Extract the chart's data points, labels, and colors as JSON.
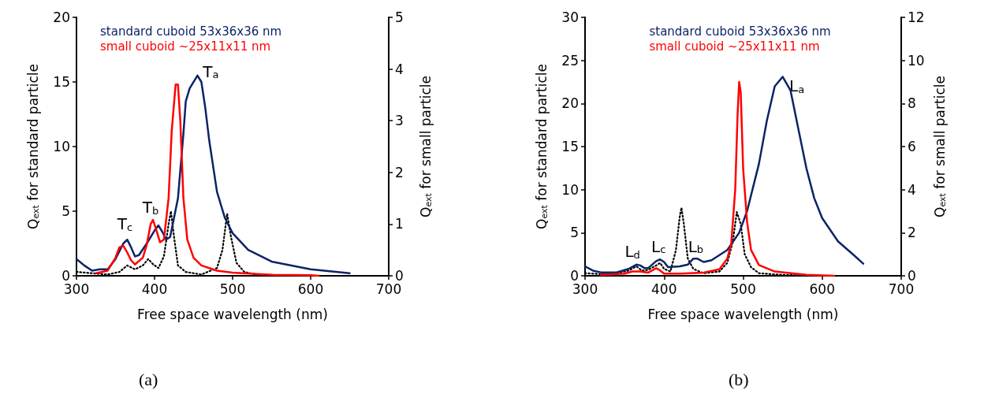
{
  "chart_data": [
    {
      "type": "line",
      "xlabel": "Free space wavelength (nm)",
      "ylabel": "Q$_{ext}$ for standard particle",
      "y2label": "Q$_{ext}$ for small particle",
      "xlim": [
        300,
        700
      ],
      "xticks": [
        300,
        400,
        500,
        600,
        700
      ],
      "ylim": [
        0,
        20
      ],
      "yticks": [
        0,
        5,
        10,
        15,
        20
      ],
      "y2lim": [
        0,
        5
      ],
      "y2ticks": [
        0,
        1,
        2,
        3,
        4,
        5
      ],
      "grid": false,
      "legend": "top left",
      "marker": "none",
      "series": [
        {
          "name": "standard cuboid 53x36x36 nm",
          "color": "#0c2466",
          "line_style": "solid",
          "x": [
            300,
            310,
            320,
            330,
            340,
            350,
            360,
            365,
            370,
            375,
            380,
            390,
            400,
            405,
            410,
            415,
            420,
            430,
            437,
            440,
            445,
            455,
            460,
            465,
            470,
            480,
            490,
            500,
            520,
            550,
            600,
            650
          ],
          "values": [
            1.3,
            0.8,
            0.4,
            0.5,
            0.5,
            1.3,
            2.5,
            2.8,
            2.2,
            1.5,
            1.6,
            2.5,
            3.5,
            3.9,
            3.4,
            2.8,
            3.0,
            6,
            11,
            13.5,
            14.5,
            15.5,
            15,
            13,
            10.5,
            6.5,
            4.5,
            3.3,
            2,
            1.1,
            0.5,
            0.2
          ]
        },
        {
          "name": "small cuboid ~25x11x11 nm",
          "color": "#ff0000",
          "axis": "y2",
          "line_style": "solid",
          "x": [
            325,
            340,
            350,
            355,
            360,
            365,
            370,
            375,
            385,
            390,
            395,
            398,
            402,
            407,
            412,
            418,
            422,
            427,
            430,
            433,
            437,
            442,
            450,
            460,
            480,
            500,
            550,
            600,
            610
          ],
          "values": [
            0.05,
            0.1,
            0.35,
            0.55,
            0.58,
            0.45,
            0.3,
            0.22,
            0.35,
            0.6,
            1.0,
            1.08,
            0.9,
            0.65,
            0.7,
            1.5,
            2.8,
            3.7,
            3.7,
            3.0,
            1.5,
            0.7,
            0.35,
            0.2,
            0.1,
            0.06,
            0.02,
            0.01,
            0
          ]
        },
        {
          "color": "#000000",
          "line_style": "dotted",
          "x": [
            300,
            320,
            340,
            355,
            365,
            375,
            385,
            392,
            398,
            405,
            412,
            418,
            421,
            425,
            430,
            440,
            460,
            480,
            487,
            493,
            498,
            505,
            515,
            530,
            560,
            600
          ],
          "values": [
            0.3,
            0.2,
            0.1,
            0.3,
            0.8,
            0.5,
            0.8,
            1.3,
            0.9,
            0.6,
            1.5,
            4,
            5,
            3,
            0.8,
            0.3,
            0.1,
            0.6,
            2,
            4.8,
            3,
            1,
            0.3,
            0.1,
            0.05,
            0
          ]
        }
      ],
      "annotations": [
        "T$_{c}$",
        "T$_{b}$",
        "T$_{a}$",
        "(a)"
      ]
    },
    {
      "type": "line",
      "xlabel": "Free space wavelength (nm)",
      "ylabel": "Q$_{ext}$ for standard particle",
      "y2label": "Q$_{ext}$ for small particle",
      "xlim": [
        300,
        700
      ],
      "xticks": [
        300,
        400,
        500,
        600,
        700
      ],
      "ylim": [
        0,
        30
      ],
      "yticks": [
        0,
        5,
        10,
        15,
        20,
        25,
        30
      ],
      "y2lim": [
        0,
        12
      ],
      "y2ticks": [
        0,
        2,
        4,
        6,
        8,
        10,
        12
      ],
      "grid": false,
      "legend": "top",
      "marker": "none",
      "series": [
        {
          "name": "standard cuboid 53x36x36 nm",
          "color": "#0c2466",
          "line_style": "solid",
          "x": [
            300,
            310,
            320,
            340,
            355,
            365,
            370,
            375,
            380,
            390,
            395,
            400,
            405,
            420,
            430,
            437,
            442,
            450,
            460,
            480,
            495,
            505,
            520,
            530,
            540,
            550,
            560,
            570,
            580,
            590,
            600,
            620,
            640,
            652
          ],
          "values": [
            1.1,
            0.6,
            0.4,
            0.4,
            0.8,
            1.3,
            1.2,
            0.9,
            0.9,
            1.7,
            1.9,
            1.6,
            1.0,
            1.1,
            1.3,
            2.0,
            2.0,
            1.6,
            1.8,
            3,
            5,
            7.5,
            13,
            18,
            22,
            23.1,
            21.5,
            17,
            12.5,
            9,
            6.7,
            4,
            2.4,
            1.4
          ]
        },
        {
          "name": "small cuboid ~25x11x11 nm",
          "color": "#ff0000",
          "axis": "y2",
          "line_style": "solid",
          "x": [
            320,
            350,
            360,
            370,
            380,
            390,
            395,
            400,
            420,
            450,
            470,
            480,
            485,
            490,
            493,
            495,
            497,
            500,
            505,
            510,
            520,
            540,
            580,
            615
          ],
          "values": [
            0.05,
            0.1,
            0.2,
            0.2,
            0.15,
            0.35,
            0.25,
            0.1,
            0.1,
            0.15,
            0.3,
            0.8,
            1.5,
            4,
            7.5,
            9,
            8.5,
            5,
            2.5,
            1.2,
            0.5,
            0.2,
            0.05,
            0
          ]
        },
        {
          "color": "#000000",
          "line_style": "dotted",
          "x": [
            300,
            320,
            340,
            355,
            365,
            372,
            380,
            390,
            395,
            400,
            408,
            415,
            420,
            422,
            425,
            430,
            437,
            450,
            470,
            480,
            487,
            492,
            497,
            502,
            510,
            520,
            550,
            600
          ],
          "values": [
            0.3,
            0.2,
            0.3,
            0.6,
            1.1,
            0.6,
            0.7,
            1.2,
            1.5,
            0.8,
            0.5,
            3,
            7,
            7.9,
            6,
            2,
            0.8,
            0.3,
            0.5,
            1.5,
            4,
            7.4,
            6,
            2.5,
            1,
            0.3,
            0.1,
            0
          ]
        }
      ],
      "annotations": [
        "L$_{d}$",
        "L$_{c}$",
        "L$_{b}$",
        "L$_{a}$",
        "(b)"
      ]
    }
  ]
}
